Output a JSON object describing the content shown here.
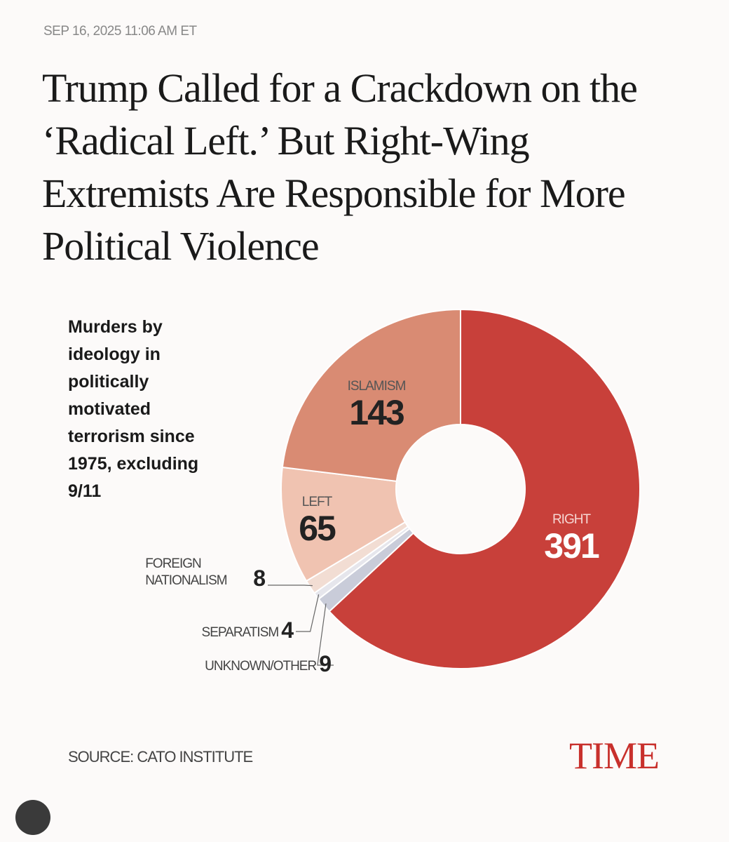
{
  "header": {
    "date": "SEP 16, 2025 11:06 AM ET",
    "title": "Trump Called for a Crackdown on the ‘Radical Left.’ But Right-Wing Extremists Are Responsible for More Political Violence"
  },
  "chart_data": {
    "type": "pie",
    "title": "Murders by ideology in politically motivated terrorism since 1975, excluding 9/11",
    "categories": [
      "RIGHT",
      "UNKNOWN/OTHER",
      "SEPARATISM",
      "FOREIGN NATIONALISM",
      "LEFT",
      "ISLAMISM"
    ],
    "values": [
      391,
      9,
      4,
      8,
      65,
      143
    ],
    "colors": [
      "#c8403a",
      "#c9ccd9",
      "#e6e6ec",
      "#f2ddd3",
      "#f0c3b1",
      "#d98b73"
    ],
    "source": "SOURCE: CATO INSTITUTE"
  },
  "footer": {
    "logo": "TIME"
  }
}
